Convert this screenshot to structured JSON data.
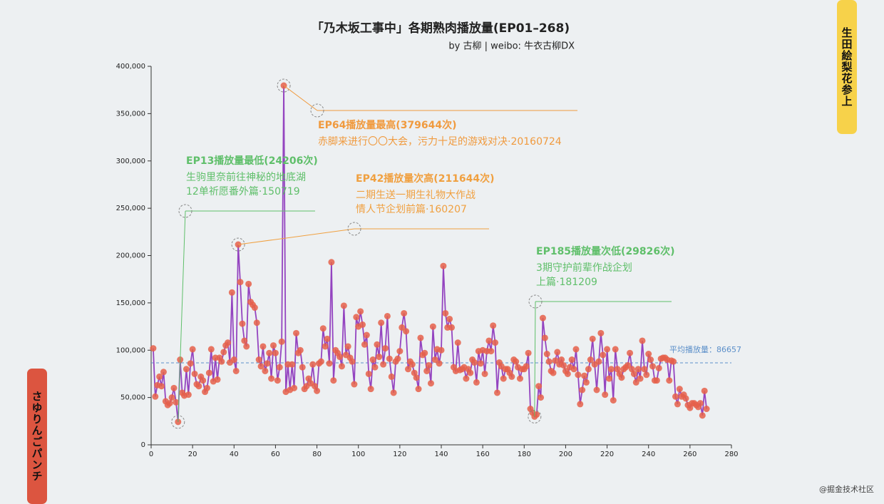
{
  "chart_data": {
    "type": "line",
    "title": "「乃木坂工事中」各期熟肉播放量(EP01–268)",
    "subtitle": "by 古柳 | weibo: 牛衣古柳DX",
    "xlim": [
      0,
      280
    ],
    "xticks": [
      0,
      20,
      40,
      60,
      80,
      100,
      120,
      140,
      160,
      180,
      200,
      220,
      240,
      260,
      280
    ],
    "ylim": [
      0,
      400000
    ],
    "yticks": [
      0,
      {
        "value": 50000,
        "label": "50,000"
      },
      {
        "value": 100000,
        "label": "100,000"
      },
      {
        "value": 150000,
        "label": "150,000"
      },
      {
        "value": 200000,
        "label": "200,000"
      },
      {
        "value": 250000,
        "label": "250,000"
      },
      {
        "value": 300000,
        "label": "300,000"
      },
      {
        "value": 350000,
        "label": "350,000"
      },
      {
        "value": 400000,
        "label": "400,000"
      }
    ],
    "x": [
      1,
      2,
      3,
      4,
      5,
      6,
      7,
      8,
      9,
      10,
      11,
      12,
      13,
      14,
      15,
      16,
      17,
      18,
      19,
      20,
      21,
      22,
      23,
      24,
      25,
      26,
      27,
      28,
      29,
      30,
      31,
      32,
      33,
      34,
      35,
      36,
      37,
      38,
      39,
      40,
      41,
      42,
      43,
      44,
      45,
      46,
      47,
      48,
      49,
      50,
      51,
      52,
      53,
      54,
      55,
      56,
      57,
      58,
      59,
      60,
      61,
      62,
      63,
      64,
      65,
      66,
      67,
      68,
      69,
      70,
      71,
      72,
      73,
      74,
      75,
      76,
      77,
      78,
      79,
      80,
      81,
      82,
      83,
      84,
      85,
      86,
      87,
      88,
      89,
      90,
      91,
      92,
      93,
      94,
      95,
      96,
      97,
      98,
      99,
      100,
      101,
      102,
      103,
      104,
      105,
      106,
      107,
      108,
      109,
      110,
      111,
      112,
      113,
      114,
      115,
      116,
      117,
      118,
      119,
      120,
      121,
      122,
      123,
      124,
      125,
      126,
      127,
      128,
      129,
      130,
      131,
      132,
      133,
      134,
      135,
      136,
      137,
      138,
      139,
      140,
      141,
      142,
      143,
      144,
      145,
      146,
      147,
      148,
      149,
      150,
      151,
      152,
      153,
      154,
      155,
      156,
      157,
      158,
      159,
      160,
      161,
      162,
      163,
      164,
      165,
      166,
      167,
      168,
      169,
      170,
      171,
      172,
      173,
      174,
      175,
      176,
      177,
      178,
      179,
      180,
      181,
      182,
      183,
      184,
      185,
      186,
      187,
      188,
      189,
      190,
      191,
      192,
      193,
      194,
      195,
      196,
      197,
      198,
      199,
      200,
      201,
      202,
      203,
      204,
      205,
      206,
      207,
      208,
      209,
      210,
      211,
      212,
      213,
      214,
      215,
      216,
      217,
      218,
      219,
      220,
      221,
      222,
      223,
      224,
      225,
      226,
      227,
      228,
      229,
      230,
      231,
      232,
      233,
      234,
      235,
      236,
      237,
      238,
      239,
      240,
      241,
      242,
      243,
      244,
      245,
      246,
      247,
      248,
      249,
      250,
      251,
      252,
      253,
      254,
      255,
      256,
      257,
      258,
      259,
      260,
      261,
      262,
      263,
      264,
      265,
      266,
      267,
      268
    ],
    "series": [
      {
        "color": "#9444c0",
        "marker_color": "#e5604a",
        "values": [
          102000,
          51000,
          63000,
          72000,
          62000,
          77000,
          46000,
          42000,
          44000,
          50000,
          60000,
          45000,
          24206,
          90000,
          55000,
          52000,
          80000,
          53000,
          86000,
          101000,
          75000,
          64000,
          62000,
          72000,
          68000,
          56000,
          60000,
          76000,
          101000,
          67000,
          92000,
          69000,
          92000,
          88000,
          98000,
          105000,
          108000,
          87000,
          161000,
          90000,
          78000,
          211644,
          172000,
          128000,
          110000,
          104000,
          170000,
          151000,
          148000,
          145000,
          129000,
          90000,
          83000,
          104000,
          78000,
          86000,
          97000,
          70000,
          105000,
          97000,
          68000,
          82000,
          109000,
          379644,
          56000,
          85000,
          58000,
          85000,
          60000,
          118000,
          97000,
          100000,
          82000,
          59000,
          62000,
          70000,
          65000,
          85000,
          62000,
          57000,
          86000,
          88000,
          123000,
          104000,
          112000,
          86000,
          193000,
          68000,
          100000,
          97000,
          93000,
          83000,
          147000,
          95000,
          104000,
          92000,
          88000,
          64000,
          135000,
          125000,
          141000,
          127000,
          106000,
          116000,
          75000,
          59000,
          90000,
          82000,
          106000,
          93000,
          129000,
          85000,
          102000,
          136000,
          91000,
          72000,
          55000,
          88000,
          91000,
          99000,
          124000,
          139000,
          120000,
          80000,
          88000,
          85000,
          76000,
          71000,
          59000,
          113000,
          95000,
          97000,
          78000,
          84000,
          65000,
          125000,
          90000,
          101000,
          86000,
          100000,
          189000,
          139000,
          124000,
          133000,
          124000,
          82000,
          78000,
          108000,
          79000,
          80000,
          82000,
          70000,
          80000,
          76000,
          90000,
          87000,
          66000,
          99000,
          86000,
          100000,
          75000,
          99000,
          110000,
          99000,
          126000,
          108000,
          55000,
          87000,
          83000,
          70000,
          80000,
          80000,
          76000,
          72000,
          90000,
          88000,
          82000,
          70000,
          80000,
          80000,
          83000,
          97000,
          38000,
          34000,
          29826,
          32000,
          62000,
          50000,
          134000,
          113000,
          96000,
          88000,
          78000,
          76000,
          89000,
          98000,
          85000,
          90000,
          84000,
          78000,
          75000,
          82000,
          90000,
          80000,
          101000,
          74000,
          43000,
          58000,
          73000,
          66000,
          80000,
          90000,
          112000,
          85000,
          58000,
          88000,
          118000,
          95000,
          53000,
          101000,
          70000,
          80000,
          47000,
          101000,
          80000,
          75000,
          71000,
          80000,
          82000,
          84000,
          97000,
          80000,
          75000,
          66000,
          80000,
          70000,
          110000,
          80000,
          74000,
          96000,
          90000,
          83000,
          68000,
          68000,
          81000,
          91000,
          92000,
          92000,
          90000,
          68000,
          89000,
          88000,
          51000,
          43000,
          59000,
          51000,
          53000,
          49000,
          42000,
          39000,
          44000,
          44000,
          42000,
          40000,
          44000,
          31000,
          57000,
          38000
        ]
      }
    ],
    "average": {
      "label": "平均播放量：",
      "value": 86657,
      "color": "#5b8fc9"
    },
    "annotations": [
      {
        "x": 13,
        "y": 24206,
        "color": "#5fbf6a",
        "title": "EP13播放量最低(24206次)",
        "lines": [
          "生驹里奈前往神秘的地底湖",
          "12单祈愿番外篇·150719"
        ]
      },
      {
        "x": 64,
        "y": 379644,
        "color": "#f09a3e",
        "title": "EP64播放量最高(379644次)",
        "lines": [
          "赤脚来进行〇〇大会，污力十足的游戏对决·20160724"
        ]
      },
      {
        "x": 42,
        "y": 211644,
        "color": "#f0a040",
        "title": "EP42播放量次高(211644次)",
        "lines": [
          "二期生送一期生礼物大作战",
          "情人节企划前篇·160207"
        ]
      },
      {
        "x": 185,
        "y": 29826,
        "color": "#5fbf6a",
        "title": "EP185播放量次低(29826次)",
        "lines": [
          "3期守护前辈作战企划",
          "上篇·181209"
        ]
      }
    ]
  },
  "buttons": {
    "right": "生田絵梨花参上",
    "left": "さゆりんごパンチ"
  },
  "watermark": "@掘金技术社区"
}
